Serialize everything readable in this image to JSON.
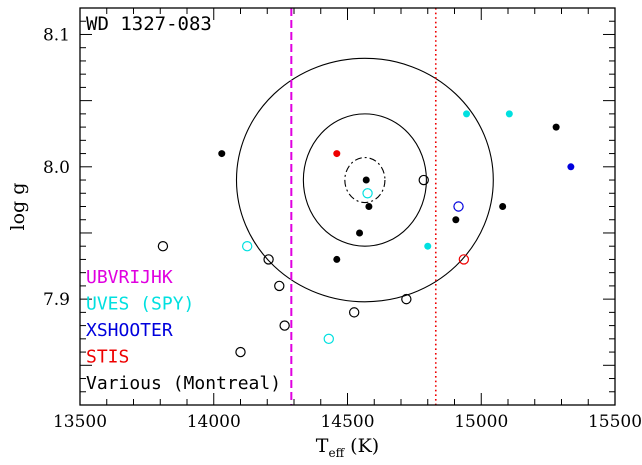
{
  "chart_data": {
    "type": "scatter",
    "title": "WD 1327-083",
    "xlabel_main": "T",
    "xlabel_sub": "eff",
    "xlabel_unit": " (K)",
    "ylabel": "log g",
    "xlim": [
      13500,
      15500
    ],
    "ylim": [
      7.82,
      8.12
    ],
    "xticks": [
      13500,
      14000,
      14500,
      15000,
      15500
    ],
    "xtick_labels": [
      "13500",
      "14000",
      "14500",
      "15000",
      "15500"
    ],
    "yticks": [
      7.9,
      8.0,
      8.1
    ],
    "ytick_labels": [
      "7.9",
      "8.0",
      "8.1"
    ],
    "grid": false,
    "legend": [
      {
        "label": "UBVRIJHK",
        "color": "#e000e0"
      },
      {
        "label": "UVES (SPY)",
        "color": "#00e0e0"
      },
      {
        "label": "XSHOOTER",
        "color": "#0000dd"
      },
      {
        "label": "STIS",
        "color": "#ee0000"
      },
      {
        "label": "Various (Montreal)",
        "color": "#000000"
      }
    ],
    "vlines": [
      {
        "x": 14290,
        "color": "#e000e0",
        "style": "dashed"
      },
      {
        "x": 14830,
        "color": "#ee0000",
        "style": "dotted"
      }
    ],
    "contours": [
      {
        "cx": 14565,
        "cy": 7.99,
        "rx": 75,
        "ry": 0.017,
        "style": "dashdot"
      },
      {
        "cx": 14565,
        "cy": 7.99,
        "rx": 230,
        "ry": 0.05,
        "style": "solid"
      },
      {
        "cx": 14565,
        "cy": 7.99,
        "rx": 480,
        "ry": 0.092,
        "style": "solid"
      }
    ],
    "series": [
      {
        "color": "#000000",
        "filled": true,
        "points": [
          [
            14030,
            8.01
          ],
          [
            14570,
            7.99
          ],
          [
            14580,
            7.97
          ],
          [
            14545,
            7.95
          ],
          [
            14460,
            7.93
          ],
          [
            14905,
            7.96
          ],
          [
            15080,
            7.97
          ],
          [
            15280,
            8.03
          ]
        ]
      },
      {
        "color": "#000000",
        "filled": false,
        "points": [
          [
            13810,
            7.94
          ],
          [
            14205,
            7.93
          ],
          [
            14245,
            7.91
          ],
          [
            14265,
            7.88
          ],
          [
            14100,
            7.86
          ],
          [
            14525,
            7.89
          ],
          [
            14720,
            7.9
          ],
          [
            14785,
            7.99
          ]
        ]
      },
      {
        "color": "#00e0e0",
        "filled": true,
        "points": [
          [
            14945,
            8.04
          ],
          [
            15105,
            8.04
          ],
          [
            14800,
            7.94
          ]
        ]
      },
      {
        "color": "#00e0e0",
        "filled": false,
        "points": [
          [
            14575,
            7.98
          ],
          [
            14125,
            7.94
          ],
          [
            14430,
            7.87
          ]
        ]
      },
      {
        "color": "#0000dd",
        "filled": true,
        "points": [
          [
            15335,
            8.0
          ]
        ]
      },
      {
        "color": "#0000dd",
        "filled": false,
        "points": [
          [
            14915,
            7.97
          ]
        ]
      },
      {
        "color": "#ee0000",
        "filled": true,
        "points": [
          [
            14460,
            8.01
          ]
        ]
      },
      {
        "color": "#ee0000",
        "filled": false,
        "points": [
          [
            14935,
            7.93
          ]
        ]
      }
    ]
  }
}
